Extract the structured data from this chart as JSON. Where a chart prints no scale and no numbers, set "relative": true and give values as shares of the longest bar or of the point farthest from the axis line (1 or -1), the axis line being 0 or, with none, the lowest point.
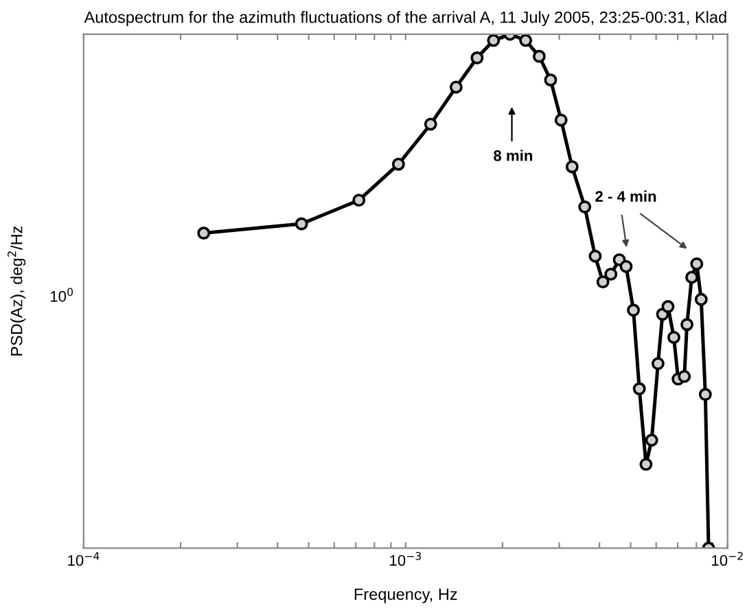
{
  "chart_data": {
    "type": "line",
    "title": "Autospectrum for the azimuth fluctuations of the arrival A, 11 July 2005, 23:25-00:31, Klad",
    "xlabel": "Frequency, Hz",
    "ylabel": "PSD(Az), deg$^{2}$/Hz",
    "log": "x",
    "grid": false,
    "legend": false,
    "marker": "circle",
    "line_style": "solid",
    "xlim": [
      0.0001,
      0.01
    ],
    "xticks": [
      {
        "value": 0.0001,
        "label": "10$^{−4}$"
      },
      {
        "value": 0.0002,
        "label": null
      },
      {
        "value": 0.0003,
        "label": null
      },
      {
        "value": 0.0004,
        "label": null
      },
      {
        "value": 0.0005,
        "label": null
      },
      {
        "value": 0.0006,
        "label": null
      },
      {
        "value": 0.0007,
        "label": null
      },
      {
        "value": 0.0008,
        "label": null
      },
      {
        "value": 0.0009,
        "label": null
      },
      {
        "value": 0.001,
        "label": "10$^{−3}$"
      },
      {
        "value": 0.002,
        "label": null
      },
      {
        "value": 0.003,
        "label": null
      },
      {
        "value": 0.004,
        "label": null
      },
      {
        "value": 0.005,
        "label": null
      },
      {
        "value": 0.006,
        "label": null
      },
      {
        "value": 0.007,
        "label": null
      },
      {
        "value": 0.008,
        "label": null
      },
      {
        "value": 0.009,
        "label": null
      },
      {
        "value": 0.01,
        "label": "10$^{−2}$"
      }
    ],
    "relative": true,
    "annotations": [
      "10$^{0}$",
      "8 min",
      "2 - 4 min"
    ],
    "series": [
      {
        "color": "#000000",
        "x": [
          0.000236,
          0.000475,
          0.000716,
          0.00095,
          0.001196,
          0.001435,
          0.001667,
          0.001875,
          0.00211,
          0.00236,
          0.0026,
          0.00282,
          0.00304,
          0.00329,
          0.0036,
          0.00388,
          0.0041,
          0.00434,
          0.00461,
          0.00484,
          0.0051,
          0.00532,
          0.00558,
          0.00581,
          0.00608,
          0.00628,
          0.00653,
          0.00681,
          0.00702,
          0.00734,
          0.00748,
          0.00774,
          0.00802,
          0.00828,
          0.00853,
          0.00873
        ],
        "values": [
          0.613,
          0.631,
          0.677,
          0.747,
          0.825,
          0.897,
          0.954,
          0.988,
          1,
          0.988,
          0.957,
          0.911,
          0.833,
          0.742,
          0.664,
          0.568,
          0.518,
          0.533,
          0.561,
          0.548,
          0.463,
          0.31,
          0.163,
          0.21,
          0.359,
          0.455,
          0.47,
          0.41,
          0.329,
          0.334,
          0.435,
          0.527,
          0.553,
          0.484,
          0.299,
          0
        ]
      }
    ]
  }
}
